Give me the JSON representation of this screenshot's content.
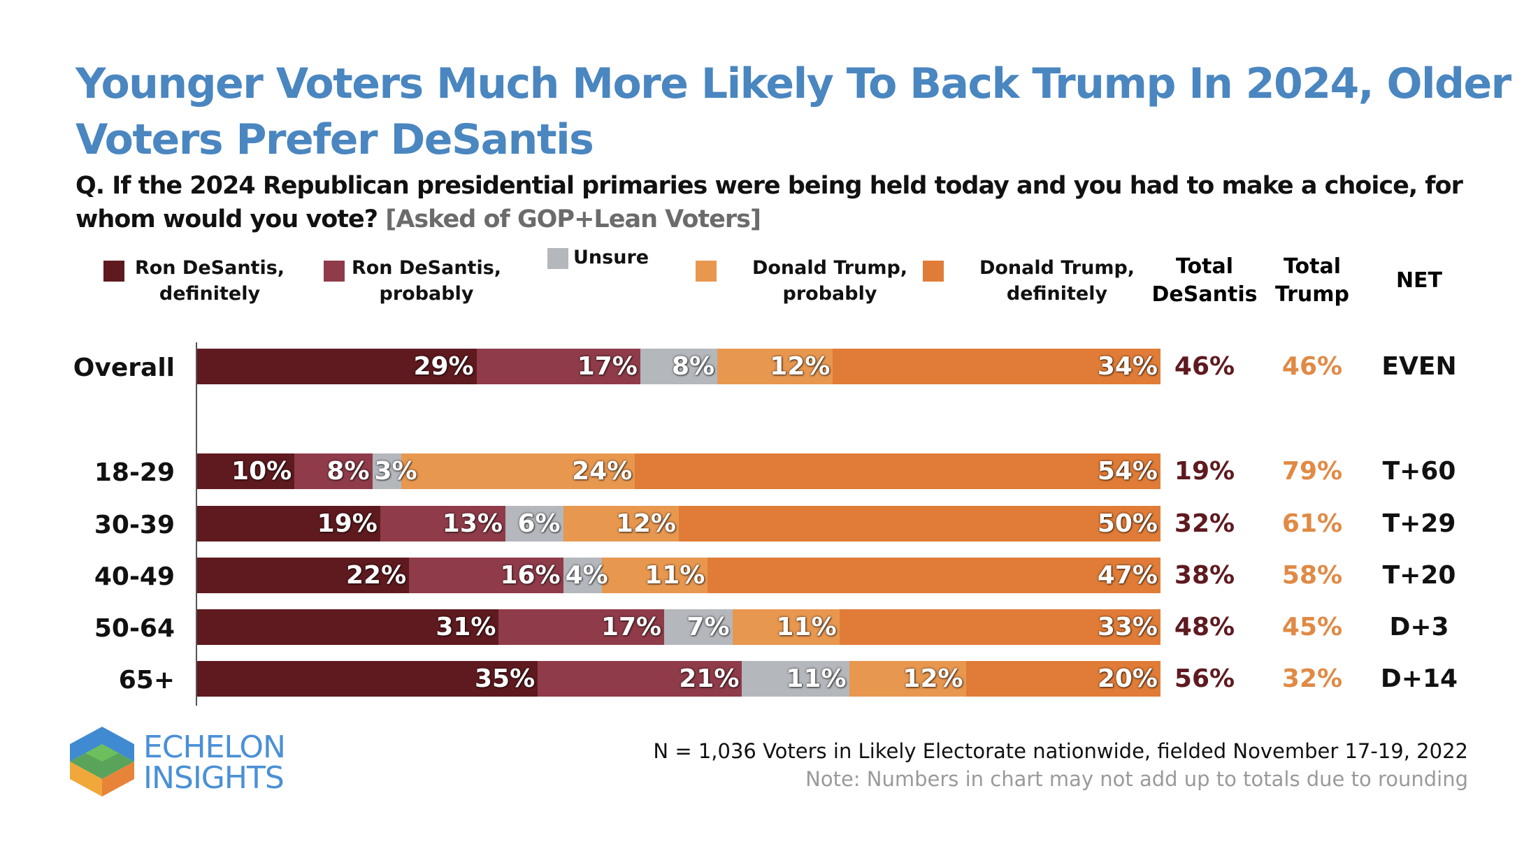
{
  "chart_data": {
    "type": "bar",
    "orientation": "horizontal-stacked",
    "title": "Younger Voters Much More Likely To Back Trump In 2024, Older Voters Prefer DeSantis",
    "question": "Q. If the 2024 Republican presidential primaries were being held today and you had to make a choice, for whom would you vote?",
    "question_note": "[Asked of GOP+Lean Voters]",
    "categories": [
      "Overall",
      "18-29",
      "30-39",
      "40-49",
      "50-64",
      "65+"
    ],
    "series": [
      {
        "name": "Ron DeSantis, definitely",
        "color": "#5e1a1f",
        "values": [
          29,
          10,
          19,
          22,
          31,
          35
        ]
      },
      {
        "name": "Ron DeSantis, probably",
        "color": "#8f3b49",
        "values": [
          17,
          8,
          13,
          16,
          17,
          21
        ]
      },
      {
        "name": "Unsure",
        "color": "#b4b7bc",
        "values": [
          8,
          3,
          6,
          4,
          7,
          11
        ]
      },
      {
        "name": "Donald Trump, probably",
        "color": "#e8974f",
        "values": [
          12,
          24,
          12,
          11,
          11,
          12
        ]
      },
      {
        "name": "Donald Trump, definitely",
        "color": "#e07c37",
        "values": [
          34,
          54,
          50,
          47,
          33,
          20
        ]
      }
    ],
    "columns": {
      "total_desantis": {
        "label": "Total DeSantis",
        "color": "#5e1a1f",
        "values": [
          "46%",
          "19%",
          "32%",
          "38%",
          "48%",
          "56%"
        ]
      },
      "total_trump": {
        "label": "Total Trump",
        "color": "#e08a45",
        "values": [
          "46%",
          "79%",
          "61%",
          "58%",
          "45%",
          "32%"
        ]
      },
      "net": {
        "label": "NET",
        "color": "#111111",
        "values": [
          "EVEN",
          "T+60",
          "T+29",
          "T+20",
          "D+3",
          "D+14"
        ]
      }
    },
    "unit": "%",
    "legend": "top"
  },
  "footer": {
    "source": "N = 1,036 Voters in Likely Electorate nationwide, fielded November 17-19, 2022",
    "note": "Note: Numbers in chart may not add up to totals due to rounding"
  },
  "logo": {
    "line1": "ECHELON",
    "line2": "INSIGHTS"
  }
}
